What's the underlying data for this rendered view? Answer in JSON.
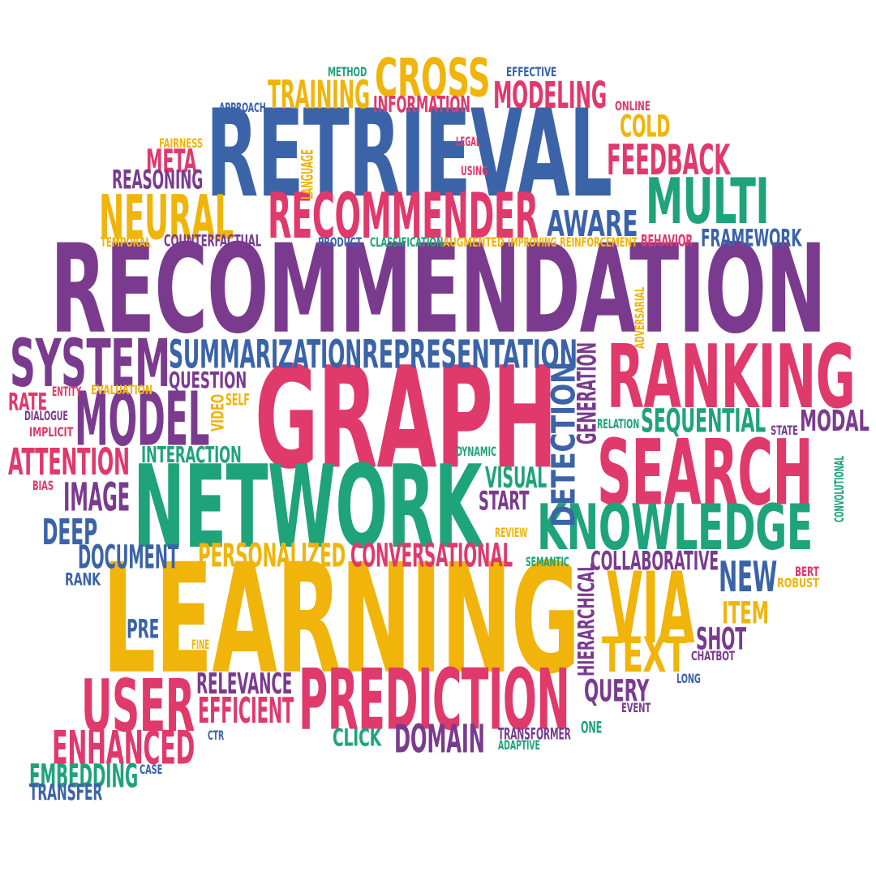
{
  "palette": {
    "purple": "#7a3b8f",
    "blue": "#3b63a8",
    "pink": "#e0396b",
    "green": "#1fa37a",
    "yellow": "#f0b40a"
  },
  "words": [
    {
      "text": "RECOMMENDATION",
      "color": "purple"
    },
    {
      "text": "LEARNING",
      "color": "yellow"
    },
    {
      "text": "GRAPH",
      "color": "pink"
    },
    {
      "text": "RETRIEVAL",
      "color": "blue"
    },
    {
      "text": "NETWORK",
      "color": "green"
    },
    {
      "text": "SEARCH",
      "color": "pink"
    },
    {
      "text": "RANKING",
      "color": "pink"
    },
    {
      "text": "PREDICTION",
      "color": "pink"
    },
    {
      "text": "KNOWLEDGE",
      "color": "green"
    },
    {
      "text": "VIA",
      "color": "yellow"
    },
    {
      "text": "RECOMMENDER",
      "color": "pink"
    },
    {
      "text": "USER",
      "color": "pink"
    },
    {
      "text": "MODEL",
      "color": "purple"
    },
    {
      "text": "SYSTEM",
      "color": "purple"
    },
    {
      "text": "MULTI",
      "color": "green"
    },
    {
      "text": "NEURAL",
      "color": "yellow"
    },
    {
      "text": "CROSS",
      "color": "yellow"
    },
    {
      "text": "TEXT",
      "color": "yellow"
    },
    {
      "text": "ENHANCED",
      "color": "pink"
    },
    {
      "text": "DETECTION",
      "color": "blue"
    },
    {
      "text": "MODELING",
      "color": "pink"
    },
    {
      "text": "SUMMARIZATION",
      "color": "blue"
    },
    {
      "text": "REPRESENTATION",
      "color": "blue"
    },
    {
      "text": "FEEDBACK",
      "color": "pink"
    },
    {
      "text": "TRAINING",
      "color": "yellow"
    },
    {
      "text": "AWARE",
      "color": "blue"
    },
    {
      "text": "ATTENTION",
      "color": "pink"
    },
    {
      "text": "IMAGE",
      "color": "purple"
    },
    {
      "text": "SEQUENTIAL",
      "color": "green"
    },
    {
      "text": "DOMAIN",
      "color": "purple"
    },
    {
      "text": "COLLABORATIVE",
      "color": "purple"
    },
    {
      "text": "EMBEDDING",
      "color": "green"
    },
    {
      "text": "PERSONALIZED",
      "color": "yellow"
    },
    {
      "text": "CONVERSATIONAL",
      "color": "pink"
    },
    {
      "text": "EFFICIENT",
      "color": "pink"
    },
    {
      "text": "RELEVANCE",
      "color": "purple"
    },
    {
      "text": "NEW",
      "color": "blue"
    },
    {
      "text": "QUERY",
      "color": "purple"
    },
    {
      "text": "DOCUMENT",
      "color": "blue"
    },
    {
      "text": "DEEP",
      "color": "blue"
    },
    {
      "text": "COLD",
      "color": "yellow"
    },
    {
      "text": "META",
      "color": "pink"
    },
    {
      "text": "REASONING",
      "color": "purple"
    },
    {
      "text": "VISUAL",
      "color": "green"
    },
    {
      "text": "START",
      "color": "purple"
    },
    {
      "text": "SHOT",
      "color": "purple"
    },
    {
      "text": "ITEM",
      "color": "yellow"
    },
    {
      "text": "CLICK",
      "color": "green"
    },
    {
      "text": "INFORMATION",
      "color": "pink"
    },
    {
      "text": "QUESTION",
      "color": "purple"
    },
    {
      "text": "INTERACTION",
      "color": "green"
    },
    {
      "text": "FRAMEWORK",
      "color": "blue"
    },
    {
      "text": "MODAL",
      "color": "purple"
    },
    {
      "text": "TRANSFER",
      "color": "blue"
    },
    {
      "text": "PRE",
      "color": "blue"
    },
    {
      "text": "RATE",
      "color": "pink"
    },
    {
      "text": "GENERATION",
      "color": "purple"
    },
    {
      "text": "HIERARCHICAL",
      "color": "purple"
    },
    {
      "text": "METHOD",
      "color": "green"
    },
    {
      "text": "EFFECTIVE",
      "color": "blue"
    },
    {
      "text": "APPROACH",
      "color": "blue"
    },
    {
      "text": "ONLINE",
      "color": "pink"
    },
    {
      "text": "FAIRNESS",
      "color": "yellow"
    },
    {
      "text": "LEGAL",
      "color": "pink"
    },
    {
      "text": "USING",
      "color": "pink"
    },
    {
      "text": "LANGUAGE",
      "color": "yellow"
    },
    {
      "text": "TEMPORAL",
      "color": "yellow"
    },
    {
      "text": "COUNTERFACTUAL",
      "color": "purple"
    },
    {
      "text": "PRODUCT",
      "color": "blue"
    },
    {
      "text": "CLASSIFICATION",
      "color": "green"
    },
    {
      "text": "AUGMENTED",
      "color": "yellow"
    },
    {
      "text": "IMPROVING",
      "color": "yellow"
    },
    {
      "text": "REINFORCEMENT",
      "color": "yellow"
    },
    {
      "text": "BEHAVIOR",
      "color": "pink"
    },
    {
      "text": "ADVERSARIAL",
      "color": "yellow"
    },
    {
      "text": "ENTITY",
      "color": "pink"
    },
    {
      "text": "EVALUATION",
      "color": "yellow"
    },
    {
      "text": "DIALOGUE",
      "color": "purple"
    },
    {
      "text": "IMPLICIT",
      "color": "pink"
    },
    {
      "text": "VIDEO",
      "color": "yellow"
    },
    {
      "text": "SELF",
      "color": "yellow"
    },
    {
      "text": "BIAS",
      "color": "pink"
    },
    {
      "text": "DYNAMIC",
      "color": "green"
    },
    {
      "text": "RELATION",
      "color": "green"
    },
    {
      "text": "STATE",
      "color": "purple"
    },
    {
      "text": "CONVOLUTIONAL",
      "color": "green"
    },
    {
      "text": "REVIEW",
      "color": "yellow"
    },
    {
      "text": "SEMANTIC",
      "color": "green"
    },
    {
      "text": "RANK",
      "color": "blue"
    },
    {
      "text": "BERT",
      "color": "pink"
    },
    {
      "text": "ROBUST",
      "color": "yellow"
    },
    {
      "text": "FINE",
      "color": "yellow"
    },
    {
      "text": "CHATBOT",
      "color": "purple"
    },
    {
      "text": "LONG",
      "color": "blue"
    },
    {
      "text": "EVENT",
      "color": "purple"
    },
    {
      "text": "CTR",
      "color": "blue"
    },
    {
      "text": "TRANSFORMER",
      "color": "purple"
    },
    {
      "text": "ONE",
      "color": "green"
    },
    {
      "text": "ADAPTIVE",
      "color": "green"
    },
    {
      "text": "CASE",
      "color": "blue"
    }
  ]
}
